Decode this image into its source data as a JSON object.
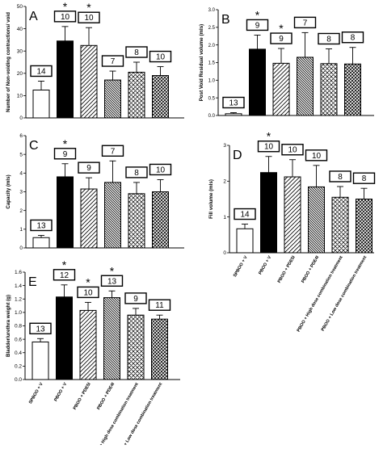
{
  "chart_data": [
    {
      "type": "bar",
      "panel_letter": "A",
      "ylabel": "Number of Non-voiding contractions/ void",
      "ylim": [
        0,
        50
      ],
      "yticks": [
        "0",
        "10",
        "20",
        "30",
        "40",
        "50"
      ],
      "categories": [
        "SPBOO + V",
        "PBOO + V",
        "PBOO + PDE5I",
        "PBOO + PDE4I",
        "PBOO + High dose combination treatment",
        "PBOO + Low dose combination treatment"
      ],
      "values": [
        12.5,
        34.5,
        32.5,
        17,
        20.5,
        19
      ],
      "errors": [
        4,
        6.5,
        8,
        4,
        4.5,
        4
      ],
      "n": [
        "14",
        "10",
        "10",
        "7",
        "8",
        "10"
      ],
      "significant": [
        false,
        true,
        true,
        false,
        false,
        false
      ],
      "significance_mark": "*",
      "show_xticklabels": false
    },
    {
      "type": "bar",
      "panel_letter": "B",
      "ylabel": "Post Void Residual volume (mls)",
      "ylim": [
        0,
        3
      ],
      "yticks": [
        "0.0",
        "0.5",
        "1.0",
        "1.5",
        "2.0",
        "2.5",
        "3.0"
      ],
      "categories": [
        "SPBOO + V",
        "PBOO + V",
        "PBOO + PDE5I",
        "PBOO + PDE4I",
        "PBOO + High dose combination treatment",
        "PBOO + Low dose combination treatment"
      ],
      "values": [
        0.05,
        1.88,
        1.48,
        1.65,
        1.47,
        1.46
      ],
      "errors": [
        0.03,
        0.4,
        0.42,
        0.7,
        0.42,
        0.47
      ],
      "n": [
        "13",
        "9",
        "9",
        "7",
        "8",
        "8"
      ],
      "significant": [
        false,
        true,
        true,
        false,
        false,
        false
      ],
      "significance_mark": "*",
      "show_xticklabels": false
    },
    {
      "type": "bar",
      "panel_letter": "C",
      "ylabel": "Capacity (mls)",
      "ylim": [
        0,
        6
      ],
      "yticks": [
        "0",
        "1",
        "2",
        "3",
        "4",
        "5",
        "6"
      ],
      "categories": [
        "SPBOO + V",
        "PBOO + V",
        "PBOO + PDE5I",
        "PBOO + PDE4I",
        "PBOO + High dose combination treatment",
        "PBOO + Low dose combination treatment"
      ],
      "values": [
        0.55,
        3.8,
        3.15,
        3.5,
        2.9,
        3.0
      ],
      "errors": [
        0.12,
        0.7,
        0.6,
        1.15,
        0.6,
        0.65
      ],
      "n": [
        "13",
        "9",
        "9",
        "7",
        "8",
        "10"
      ],
      "significant": [
        false,
        true,
        false,
        false,
        false,
        false
      ],
      "significance_mark": "*",
      "show_xticklabels": false
    },
    {
      "type": "bar",
      "panel_letter": "D",
      "ylabel": "Fill volume (mls)",
      "ylim": [
        0,
        3
      ],
      "yticks": [
        "0",
        "1",
        "2",
        "3"
      ],
      "categories": [
        "SPBOO + V",
        "PBOO + V",
        "PBOO + PDE5I",
        "PBOO + PDE4I",
        "PBOO + High dose combination treatment",
        "PBOO + Low dose combination treatment"
      ],
      "values": [
        0.67,
        2.24,
        2.12,
        1.84,
        1.55,
        1.5
      ],
      "errors": [
        0.13,
        0.45,
        0.48,
        0.6,
        0.3,
        0.3
      ],
      "n": [
        "14",
        "10",
        "10",
        "10",
        "8",
        "8"
      ],
      "significant": [
        false,
        true,
        false,
        false,
        false,
        false
      ],
      "significance_mark": "*",
      "show_xticklabels": true
    },
    {
      "type": "bar",
      "panel_letter": "E",
      "ylabel": "Bladder/urethra weight (g)",
      "ylim": [
        0,
        1.6
      ],
      "yticks": [
        "0.0",
        "0.2",
        "0.4",
        "0.6",
        "0.8",
        "1.0",
        "1.2",
        "1.4",
        "1.6"
      ],
      "categories": [
        "SPBOO + V",
        "PBOO + V",
        "PBOO + PDE5I",
        "PBOO + PDE4I",
        "PBOO + High dose combination treatment",
        "PBOO + Low dose combination treatment"
      ],
      "values": [
        0.56,
        1.23,
        1.03,
        1.22,
        0.96,
        0.9
      ],
      "errors": [
        0.05,
        0.18,
        0.12,
        0.1,
        0.1,
        0.06
      ],
      "n": [
        "13",
        "12",
        "10",
        "13",
        "9",
        "11"
      ],
      "significant": [
        false,
        true,
        true,
        true,
        false,
        false
      ],
      "significance_mark": "*",
      "show_xticklabels": true
    }
  ],
  "colors": {
    "axis": "#000000",
    "bar_black": "#000000",
    "bar_white": "#ffffff"
  },
  "bar_patterns": [
    "white",
    "black",
    "diagonal-hatch",
    "dense-diagonal-hatch",
    "crosshatch",
    "dense-crosshatch"
  ]
}
